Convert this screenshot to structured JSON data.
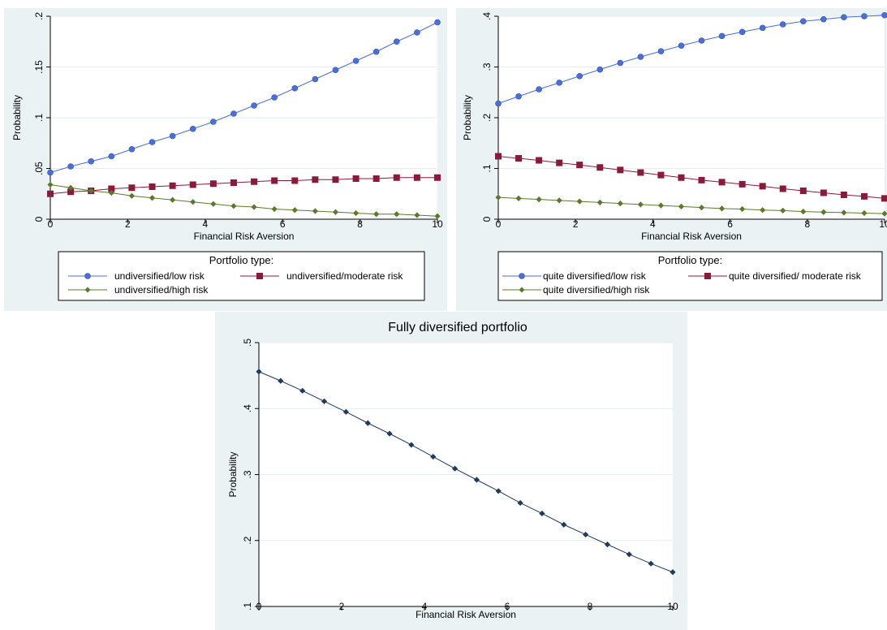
{
  "chart_data": [
    {
      "type": "line",
      "title": "",
      "xlabel": "Financial Risk Aversion",
      "ylabel": "Probability",
      "xlim": [
        0,
        10
      ],
      "ylim": [
        0,
        0.2
      ],
      "xticks": [
        0,
        2,
        4,
        6,
        8,
        10
      ],
      "xtick_labels": [
        "0",
        "2",
        "4",
        "6",
        "8",
        "10"
      ],
      "yticks": [
        0,
        0.05,
        0.1,
        0.15,
        0.2
      ],
      "ytick_labels": [
        "0",
        ".05",
        ".1",
        ".15",
        ".2"
      ],
      "grid": true,
      "legend": {
        "title": "Portfolio type:",
        "placement": "bottom",
        "entries": [
          "undiversified/low risk",
          "undiversified/moderate risk",
          "undiversified/high risk"
        ]
      },
      "x": [
        0,
        0.526,
        1.053,
        1.579,
        2.105,
        2.632,
        3.158,
        3.684,
        4.211,
        4.737,
        5.263,
        5.789,
        6.316,
        6.842,
        7.368,
        7.895,
        8.421,
        8.947,
        9.474,
        10
      ],
      "series": [
        {
          "name": "undiversified/low risk",
          "color": "#4a6fd8",
          "marker": "circle",
          "values": [
            0.046,
            0.052,
            0.057,
            0.062,
            0.069,
            0.076,
            0.082,
            0.089,
            0.096,
            0.104,
            0.112,
            0.12,
            0.129,
            0.138,
            0.147,
            0.156,
            0.165,
            0.175,
            0.184,
            0.194
          ]
        },
        {
          "name": "undiversified/moderate risk",
          "color": "#8b1a3a",
          "marker": "square",
          "values": [
            0.025,
            0.027,
            0.028,
            0.03,
            0.031,
            0.032,
            0.033,
            0.034,
            0.035,
            0.036,
            0.037,
            0.038,
            0.038,
            0.039,
            0.039,
            0.04,
            0.04,
            0.041,
            0.041,
            0.041
          ]
        },
        {
          "name": "undiversified/high risk",
          "color": "#5a7a2a",
          "marker": "diamond",
          "values": [
            0.034,
            0.031,
            0.028,
            0.026,
            0.023,
            0.021,
            0.019,
            0.017,
            0.015,
            0.013,
            0.012,
            0.01,
            0.009,
            0.008,
            0.007,
            0.006,
            0.005,
            0.005,
            0.004,
            0.003
          ]
        }
      ]
    },
    {
      "type": "line",
      "title": "",
      "xlabel": "Financial Risk Aversion",
      "ylabel": "Probability",
      "xlim": [
        0,
        10
      ],
      "ylim": [
        0,
        0.4
      ],
      "xticks": [
        0,
        2,
        4,
        6,
        8,
        10
      ],
      "xtick_labels": [
        "0",
        "2",
        "4",
        "6",
        "8",
        "10"
      ],
      "yticks": [
        0,
        0.1,
        0.2,
        0.3,
        0.4
      ],
      "ytick_labels": [
        "0",
        ".1",
        ".2",
        ".3",
        ".4"
      ],
      "grid": true,
      "legend": {
        "title": "Portfolio type:",
        "placement": "bottom",
        "entries": [
          "quite  diversified/low risk",
          "quite diversified/ moderate risk",
          "quite  diversified/high risk"
        ]
      },
      "x": [
        0,
        0.526,
        1.053,
        1.579,
        2.105,
        2.632,
        3.158,
        3.684,
        4.211,
        4.737,
        5.263,
        5.789,
        6.316,
        6.842,
        7.368,
        7.895,
        8.421,
        8.947,
        9.474,
        10
      ],
      "series": [
        {
          "name": "quite  diversified/low risk",
          "color": "#4a6fd8",
          "marker": "circle",
          "values": [
            0.228,
            0.242,
            0.256,
            0.269,
            0.282,
            0.295,
            0.308,
            0.32,
            0.331,
            0.342,
            0.352,
            0.361,
            0.369,
            0.377,
            0.384,
            0.39,
            0.394,
            0.398,
            0.4,
            0.402
          ]
        },
        {
          "name": "quite diversified/ moderate risk",
          "color": "#8b1a3a",
          "marker": "square",
          "values": [
            0.124,
            0.12,
            0.116,
            0.111,
            0.107,
            0.102,
            0.097,
            0.092,
            0.087,
            0.082,
            0.077,
            0.073,
            0.069,
            0.065,
            0.06,
            0.056,
            0.052,
            0.048,
            0.045,
            0.041
          ]
        },
        {
          "name": "quite  diversified/high risk",
          "color": "#5a7a2a",
          "marker": "diamond",
          "values": [
            0.043,
            0.041,
            0.039,
            0.037,
            0.035,
            0.033,
            0.031,
            0.029,
            0.027,
            0.025,
            0.023,
            0.021,
            0.02,
            0.018,
            0.017,
            0.015,
            0.014,
            0.013,
            0.012,
            0.011
          ]
        }
      ]
    },
    {
      "type": "line",
      "title": "Fully diversified portfolio",
      "xlabel": "Financial Risk Aversion",
      "ylabel": "Probability",
      "xlim": [
        0,
        10
      ],
      "ylim": [
        0.1,
        0.5
      ],
      "xticks": [
        0,
        2,
        4,
        6,
        8,
        10
      ],
      "xtick_labels": [
        "0",
        "2",
        "4",
        "6",
        "8",
        "10"
      ],
      "yticks": [
        0.1,
        0.2,
        0.3,
        0.4,
        0.5
      ],
      "ytick_labels": [
        ".1",
        ".2",
        ".3",
        ".4",
        ".5"
      ],
      "grid": true,
      "x": [
        0,
        0.526,
        1.053,
        1.579,
        2.105,
        2.632,
        3.158,
        3.684,
        4.211,
        4.737,
        5.263,
        5.789,
        6.316,
        6.842,
        7.368,
        7.895,
        8.421,
        8.947,
        9.474,
        10
      ],
      "series": [
        {
          "color": "#1f3a5f",
          "marker": "diamond",
          "values": [
            0.456,
            0.442,
            0.427,
            0.411,
            0.395,
            0.378,
            0.362,
            0.345,
            0.327,
            0.309,
            0.292,
            0.275,
            0.257,
            0.241,
            0.224,
            0.209,
            0.194,
            0.179,
            0.165,
            0.152
          ]
        }
      ]
    }
  ]
}
